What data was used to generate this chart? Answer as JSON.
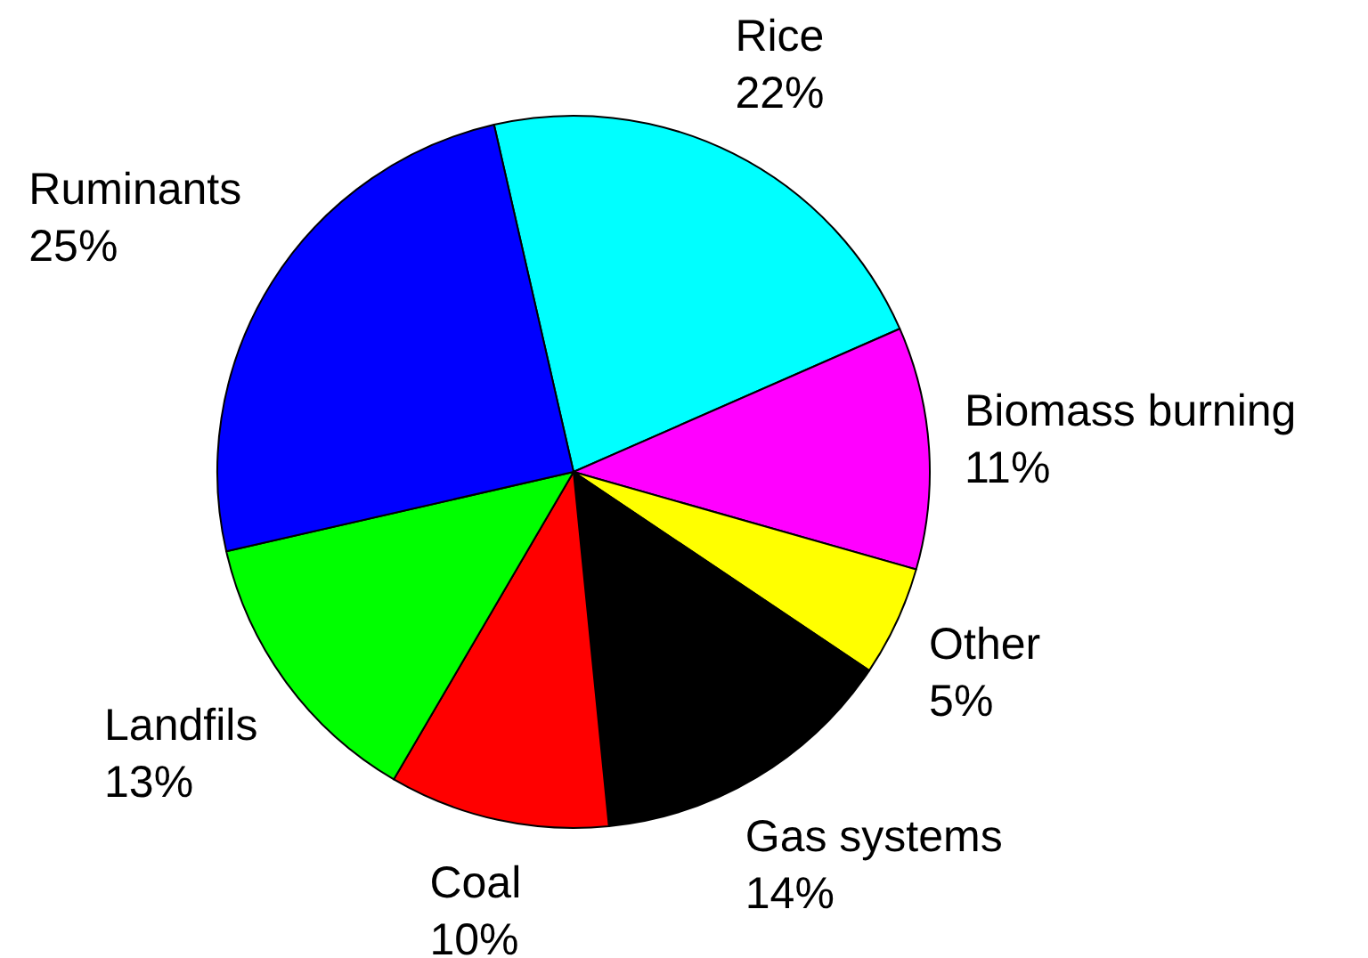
{
  "chart_data": {
    "type": "pie",
    "categories": [
      "Rice",
      "Biomass burning",
      "Other",
      "Gas systems",
      "Coal",
      "Landfils",
      "Ruminants"
    ],
    "values": [
      22,
      11,
      5,
      14,
      10,
      13,
      25
    ],
    "colors": [
      "#00ffff",
      "#ff00ff",
      "#ffff00",
      "#000000",
      "#ff0000",
      "#00ff00",
      "#0000ff"
    ],
    "value_labels": [
      "22%",
      "11%",
      "5%",
      "14%",
      "10%",
      "13%",
      "25%"
    ]
  }
}
